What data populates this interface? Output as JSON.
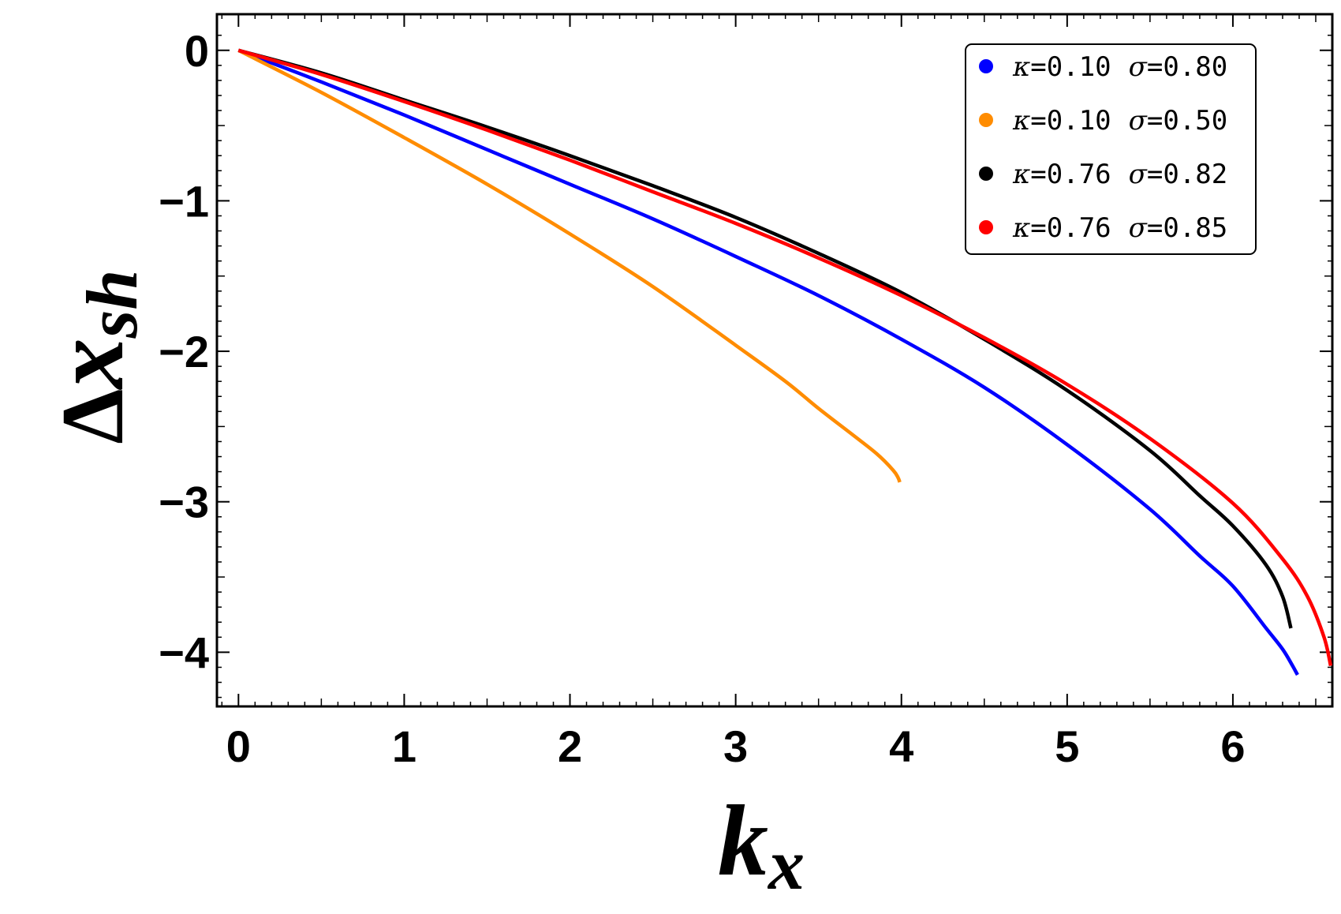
{
  "chart_data": {
    "type": "line",
    "title": "",
    "xlabel": {
      "base": "k",
      "sub": "x"
    },
    "ylabel": {
      "prefix": "Δ",
      "base": "x",
      "sub": "sh"
    },
    "xlim": [
      -0.13,
      6.6
    ],
    "ylim": [
      -4.36,
      0.24
    ],
    "xticks": [
      0,
      1,
      2,
      3,
      4,
      5,
      6
    ],
    "yticks": [
      0,
      -1,
      -2,
      -3,
      -4
    ],
    "xtick_labels": [
      "0",
      "1",
      "2",
      "3",
      "4",
      "5",
      "6"
    ],
    "ytick_labels": [
      "0",
      "−1",
      "−2",
      "−3",
      "−4"
    ],
    "grid": false,
    "legend_position": "top-right",
    "series": [
      {
        "name": "κ=0.10 σ=0.80",
        "kappa_label": "κ",
        "kappa_value": "=0.10",
        "sigma_label": "σ",
        "sigma_value": "=0.80",
        "color": "#0000ff",
        "x": [
          0,
          0.5,
          1.0,
          1.5,
          2.0,
          2.5,
          3.0,
          3.5,
          4.0,
          4.5,
          5.0,
          5.5,
          5.8,
          6.0,
          6.2,
          6.3,
          6.36,
          6.39
        ],
        "y": [
          0,
          -0.21,
          -0.43,
          -0.66,
          -0.89,
          -1.12,
          -1.37,
          -1.63,
          -1.92,
          -2.24,
          -2.62,
          -3.05,
          -3.36,
          -3.56,
          -3.84,
          -3.98,
          -4.09,
          -4.15
        ]
      },
      {
        "name": "κ=0.10 σ=0.50",
        "kappa_label": "κ",
        "kappa_value": "=0.10",
        "sigma_label": "σ",
        "sigma_value": "=0.50",
        "color": "#ff8c00",
        "x": [
          0,
          0.5,
          1.0,
          1.5,
          2.0,
          2.5,
          3.0,
          3.3,
          3.5,
          3.7,
          3.85,
          3.95,
          3.98,
          3.99
        ],
        "y": [
          0,
          -0.28,
          -0.58,
          -0.89,
          -1.22,
          -1.57,
          -1.96,
          -2.2,
          -2.38,
          -2.55,
          -2.68,
          -2.79,
          -2.84,
          -2.87
        ]
      },
      {
        "name": "κ=0.76 σ=0.82",
        "kappa_label": "κ",
        "kappa_value": "=0.76",
        "sigma_label": "σ",
        "sigma_value": "=0.82",
        "color": "#000000",
        "x": [
          0,
          0.5,
          1.0,
          1.5,
          2.0,
          2.5,
          3.0,
          3.5,
          4.0,
          4.5,
          5.0,
          5.5,
          5.8,
          6.0,
          6.2,
          6.3,
          6.35
        ],
        "y": [
          0,
          -0.15,
          -0.33,
          -0.51,
          -0.7,
          -0.9,
          -1.11,
          -1.35,
          -1.61,
          -1.92,
          -2.26,
          -2.66,
          -2.96,
          -3.16,
          -3.42,
          -3.63,
          -3.84
        ]
      },
      {
        "name": "κ=0.76 σ=0.85",
        "kappa_label": "κ",
        "kappa_value": "=0.76",
        "sigma_label": "σ",
        "sigma_value": "=0.85",
        "color": "#ff0000",
        "x": [
          0,
          0.5,
          1.0,
          1.5,
          2.0,
          2.5,
          3.0,
          3.5,
          4.0,
          4.5,
          5.0,
          5.5,
          6.0,
          6.3,
          6.45,
          6.55,
          6.59
        ],
        "y": [
          0,
          -0.16,
          -0.34,
          -0.53,
          -0.73,
          -0.94,
          -1.15,
          -1.38,
          -1.63,
          -1.91,
          -2.22,
          -2.58,
          -3.01,
          -3.38,
          -3.63,
          -3.9,
          -4.09
        ]
      }
    ]
  }
}
